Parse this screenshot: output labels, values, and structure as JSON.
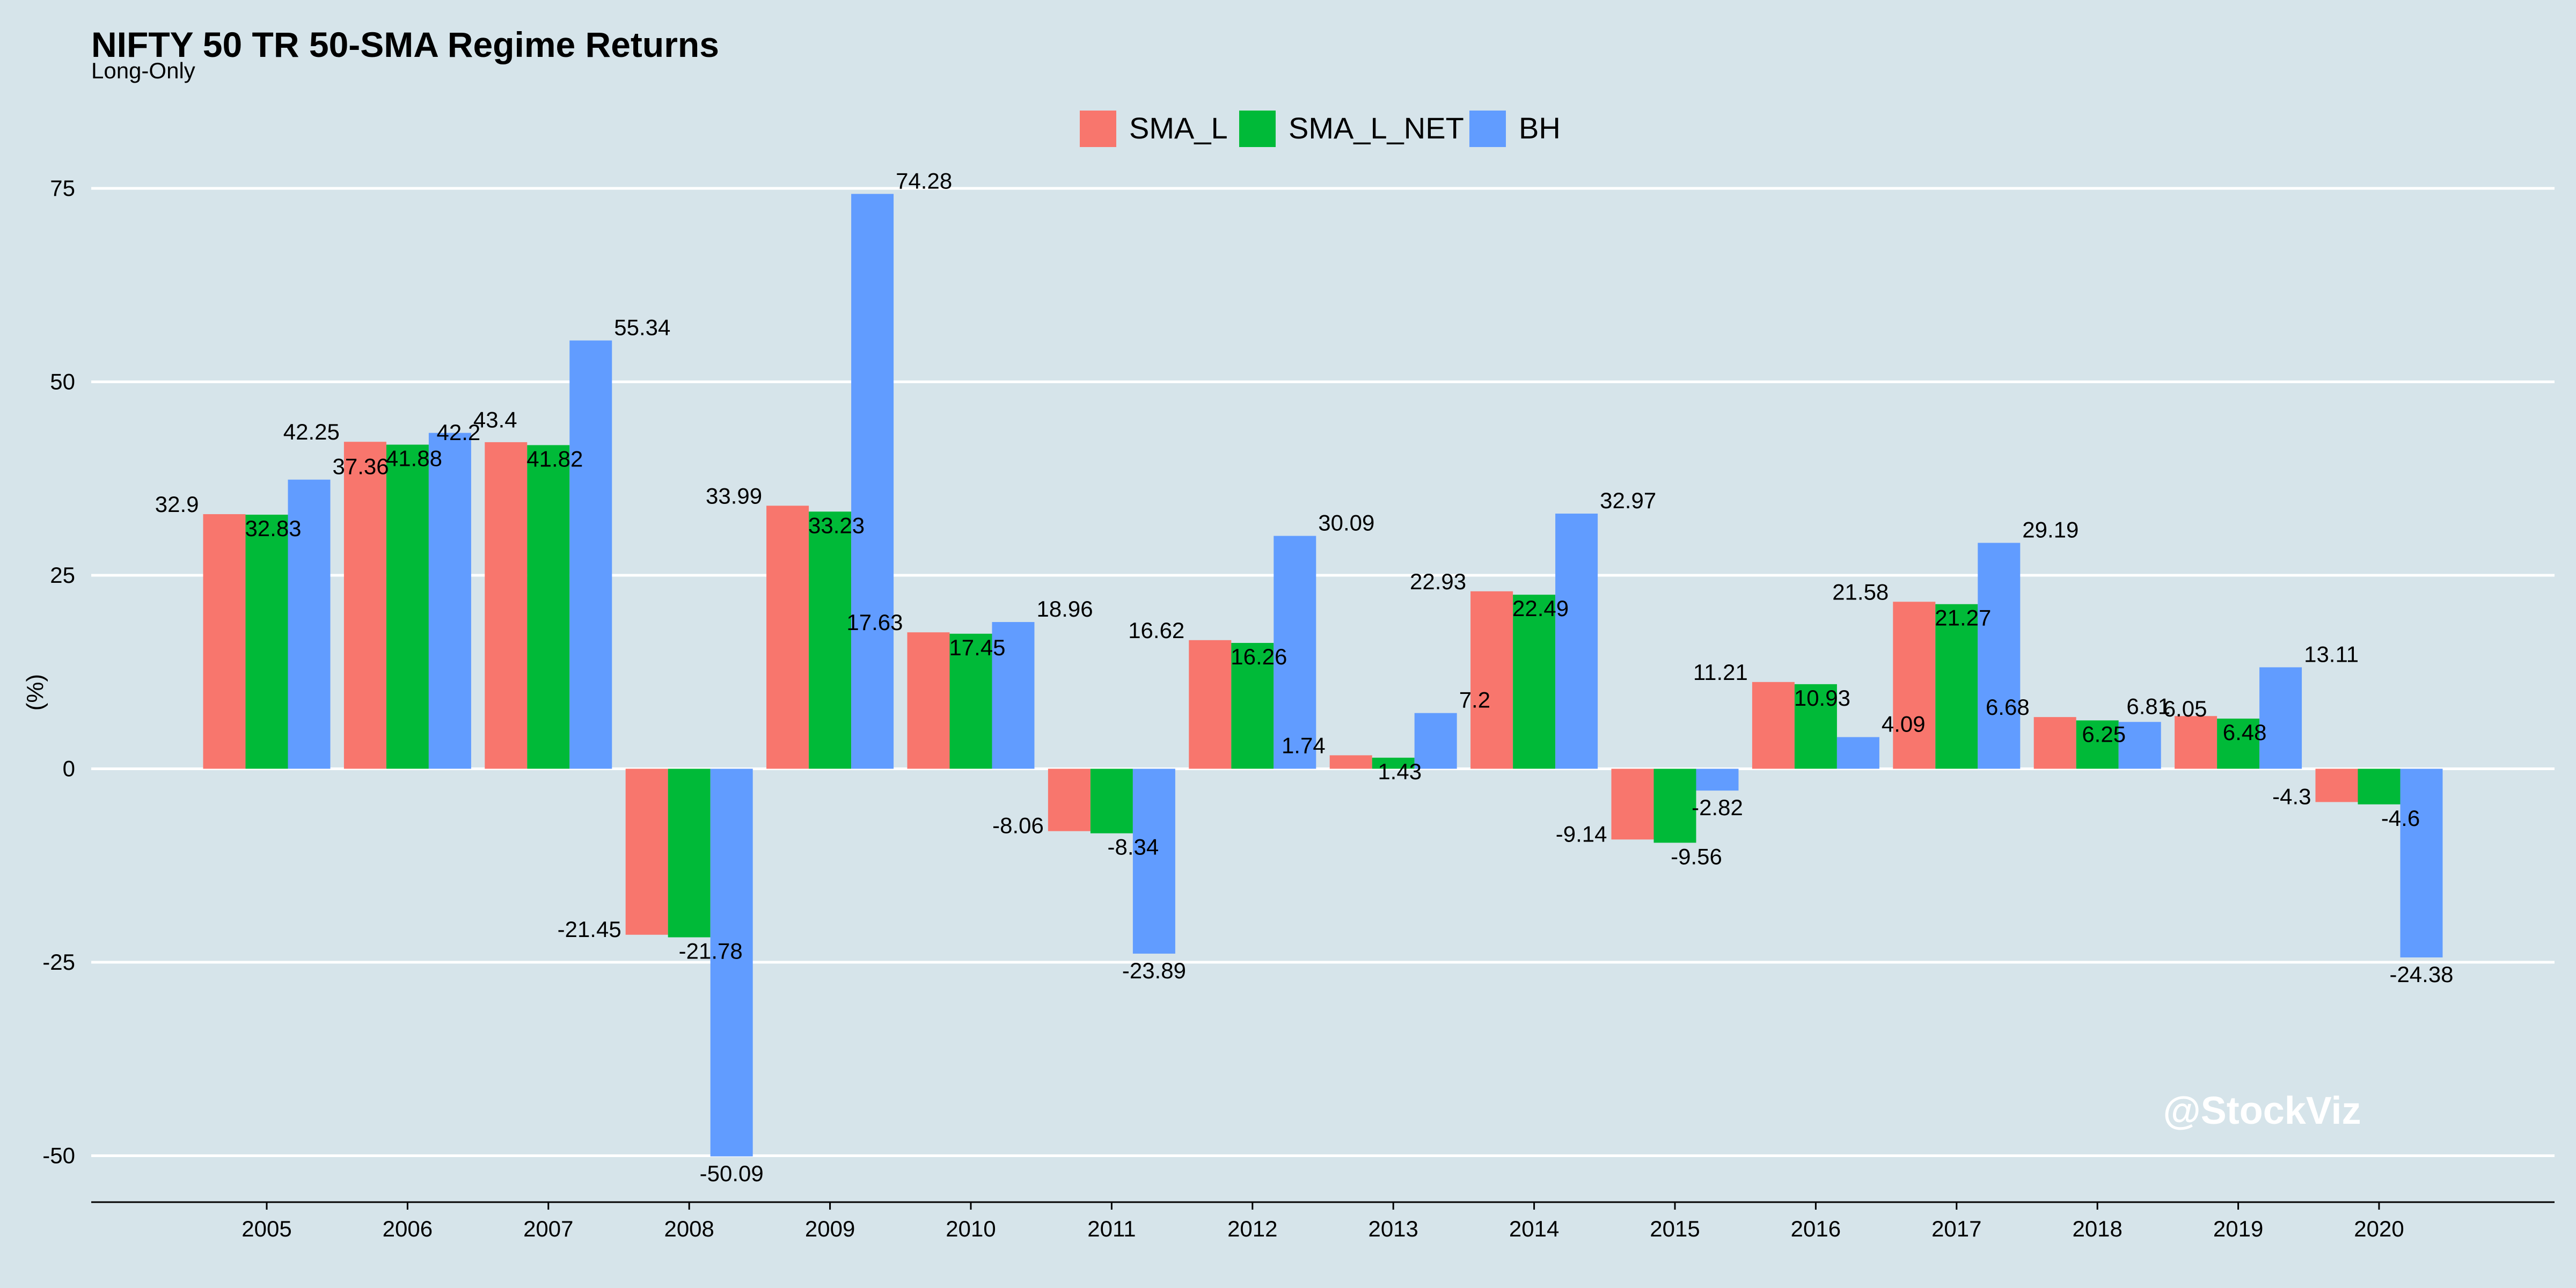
{
  "chart_data": {
    "type": "bar",
    "title": "NIFTY 50 TR 50-SMA Regime Returns",
    "subtitle": "Long-Only",
    "xlabel": "",
    "ylabel": "(%)",
    "ylim": [
      -56,
      82
    ],
    "yticks": [
      75,
      50,
      25,
      0,
      -25,
      -50
    ],
    "grid": true,
    "legend_position": "top",
    "watermark": "@StockViz",
    "categories": [
      "2005",
      "2006",
      "2007",
      "2008",
      "2009",
      "2010",
      "2011",
      "2012",
      "2013",
      "2014",
      "2015",
      "2016",
      "2017",
      "2018",
      "2019",
      "2020"
    ],
    "series": [
      {
        "name": "SMA_L",
        "color": "#f8766d",
        "values": [
          32.9,
          42.25,
          42.2,
          -21.45,
          33.99,
          17.63,
          -8.06,
          16.62,
          1.74,
          22.93,
          -9.14,
          11.21,
          21.58,
          6.68,
          6.81,
          -4.3
        ]
      },
      {
        "name": "SMA_L_NET",
        "color": "#00ba38",
        "values": [
          32.83,
          41.88,
          41.82,
          -21.78,
          33.23,
          17.45,
          -8.34,
          16.26,
          1.43,
          22.49,
          -9.56,
          10.93,
          21.27,
          6.25,
          6.48,
          -4.6
        ]
      },
      {
        "name": "BH",
        "color": "#619cff",
        "values": [
          37.36,
          43.4,
          55.34,
          -50.09,
          74.28,
          18.96,
          -23.89,
          30.09,
          7.2,
          32.97,
          -2.82,
          4.09,
          29.19,
          6.05,
          13.11,
          -24.38
        ]
      }
    ]
  }
}
